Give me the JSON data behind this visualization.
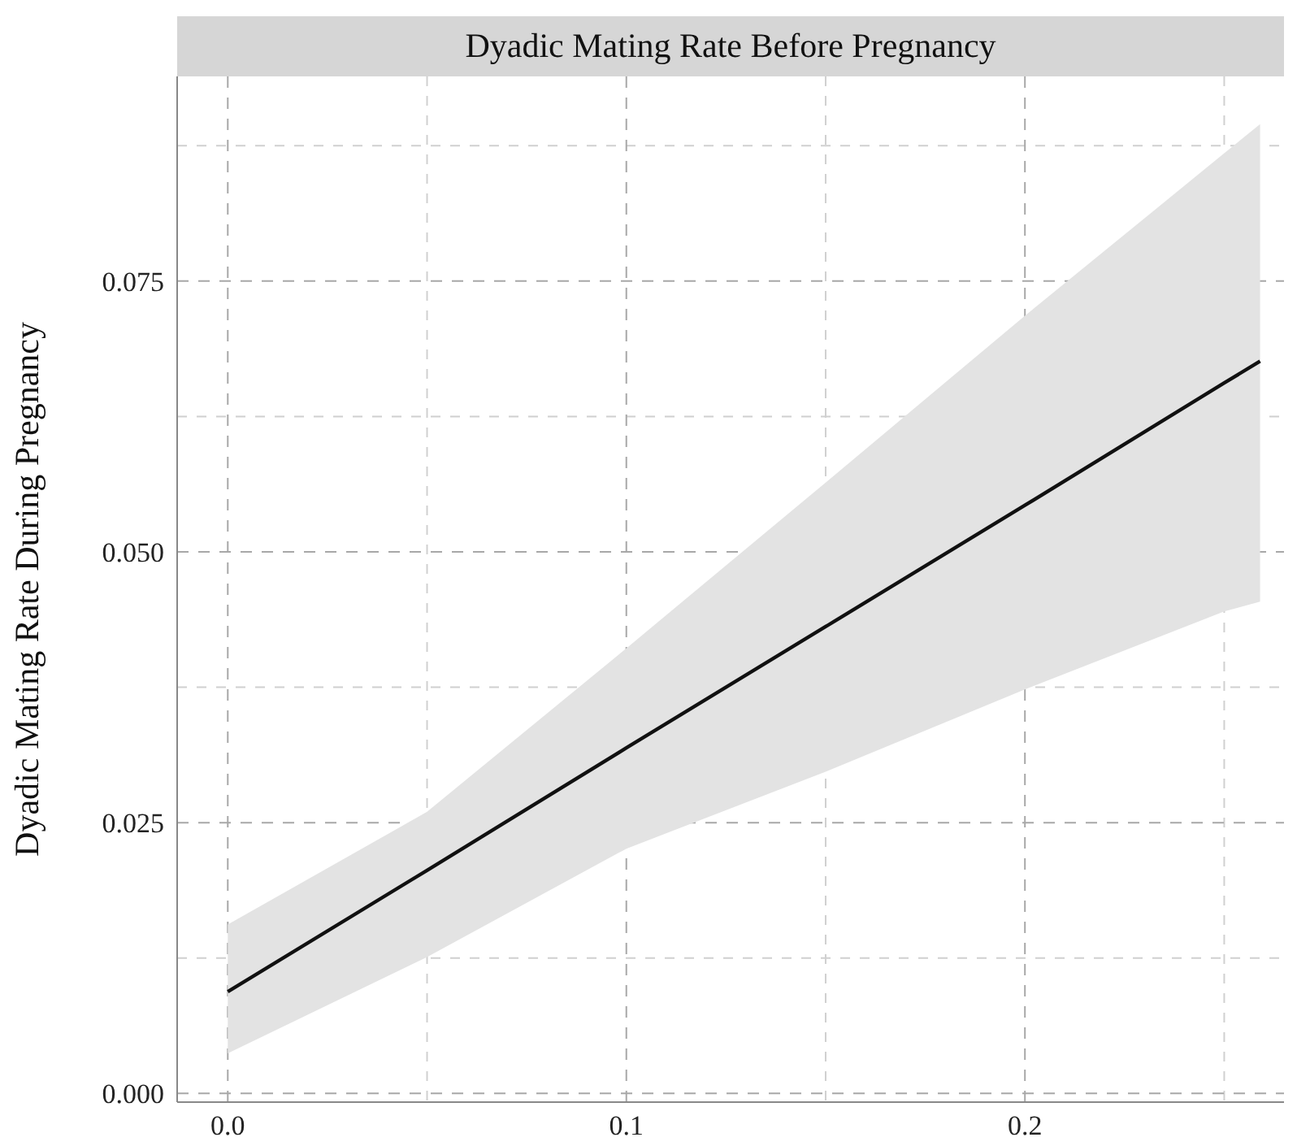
{
  "chart_data": {
    "type": "line",
    "title": "Dyadic Mating Rate Before Pregnancy",
    "ylabel": "Dyadic Mating Rate During Pregnancy",
    "x": [
      0,
      0.05,
      0.1,
      0.15,
      0.2,
      0.25,
      0.259
    ],
    "series": [
      {
        "color": "#111111",
        "values": [
          0.0094,
          0.0206,
          0.0319,
          0.0431,
          0.0543,
          0.0656,
          0.0676
        ],
        "lower": [
          0.0037,
          0.0126,
          0.0226,
          0.0297,
          0.0373,
          0.0445,
          0.0454
        ],
        "upper": [
          0.0156,
          0.026,
          0.0411,
          0.0564,
          0.0718,
          0.0868,
          0.0895
        ]
      }
    ],
    "xlim": [
      -0.0127,
      0.265
    ],
    "ylim": [
      -0.0008,
      0.0939
    ],
    "xticks": [
      {
        "value": 0,
        "label": "0.0"
      },
      {
        "value": 0.05,
        "label": null
      },
      {
        "value": 0.1,
        "label": "0.1"
      },
      {
        "value": 0.15,
        "label": null
      },
      {
        "value": 0.2,
        "label": "0.2"
      },
      {
        "value": 0.25,
        "label": null
      }
    ],
    "yticks": [
      {
        "value": 0,
        "label": "0.000"
      },
      {
        "value": 0.0125,
        "label": null
      },
      {
        "value": 0.025,
        "label": "0.025"
      },
      {
        "value": 0.0375,
        "label": null
      },
      {
        "value": 0.05,
        "label": "0.050"
      },
      {
        "value": 0.0625,
        "label": null
      },
      {
        "value": 0.075,
        "label": "0.075"
      },
      {
        "value": 0.0875,
        "label": null
      }
    ],
    "grid": true,
    "marker": "none",
    "line_style": "solid"
  }
}
